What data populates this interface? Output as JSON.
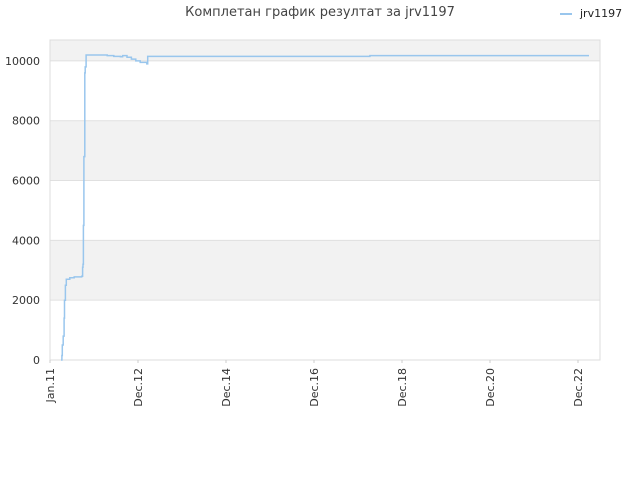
{
  "chart_data": {
    "type": "line",
    "title": "Комплетан график резултат за jrv1197",
    "xlabel": "",
    "ylabel": "",
    "x_range": [
      2011.0,
      2023.5
    ],
    "ylim": [
      0,
      10700
    ],
    "y_ticks": [
      0,
      2000,
      4000,
      6000,
      8000,
      10000
    ],
    "x_ticks": [
      {
        "label": "Jan.11",
        "value": 2011.0
      },
      {
        "label": "Dec.12",
        "value": 2013.0
      },
      {
        "label": "Dec.14",
        "value": 2015.0
      },
      {
        "label": "Dec.16",
        "value": 2017.0
      },
      {
        "label": "Dec.18",
        "value": 2019.0
      },
      {
        "label": "Dec.20",
        "value": 2021.0
      },
      {
        "label": "Dec.22",
        "value": 2023.0
      }
    ],
    "grid": true,
    "legend_position": "top-right",
    "series": [
      {
        "name": "jrv1197",
        "color": "#99c6ed",
        "points": [
          [
            2011.25,
            0
          ],
          [
            2011.27,
            150
          ],
          [
            2011.28,
            500
          ],
          [
            2011.3,
            800
          ],
          [
            2011.32,
            1400
          ],
          [
            2011.33,
            2000
          ],
          [
            2011.35,
            2500
          ],
          [
            2011.37,
            2700
          ],
          [
            2011.45,
            2750
          ],
          [
            2011.55,
            2780
          ],
          [
            2011.72,
            2800
          ],
          [
            2011.74,
            3100
          ],
          [
            2011.75,
            3200
          ],
          [
            2011.76,
            4500
          ],
          [
            2011.77,
            6800
          ],
          [
            2011.79,
            9600
          ],
          [
            2011.8,
            9800
          ],
          [
            2011.82,
            10200
          ],
          [
            2012.0,
            10200
          ],
          [
            2012.3,
            10180
          ],
          [
            2012.45,
            10150
          ],
          [
            2012.6,
            10140
          ],
          [
            2012.65,
            10180
          ],
          [
            2012.75,
            10120
          ],
          [
            2012.85,
            10060
          ],
          [
            2012.95,
            10000
          ],
          [
            2013.05,
            9950
          ],
          [
            2013.2,
            9900
          ],
          [
            2013.22,
            10150
          ],
          [
            2014.0,
            10150
          ],
          [
            2015.0,
            10150
          ],
          [
            2016.0,
            10150
          ],
          [
            2017.0,
            10150
          ],
          [
            2018.0,
            10150
          ],
          [
            2018.25,
            10150
          ],
          [
            2018.27,
            10180
          ],
          [
            2019.0,
            10180
          ],
          [
            2020.0,
            10180
          ],
          [
            2021.0,
            10180
          ],
          [
            2022.0,
            10180
          ],
          [
            2023.25,
            10180
          ]
        ]
      }
    ]
  }
}
